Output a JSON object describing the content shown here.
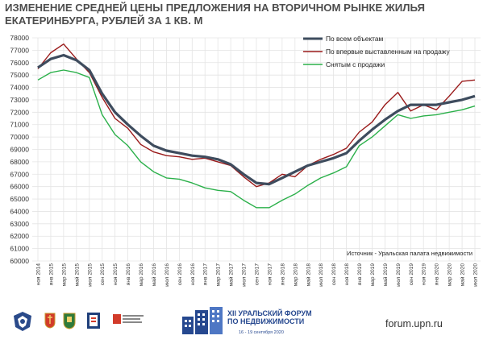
{
  "title_lines": [
    "Изменение средней цены предложения на вторичном рынке жилья",
    "Екатеринбурга, рублей за 1 кв. м"
  ],
  "source": "Источник - Уральская палата недвижимости",
  "footer": {
    "forum_line1": "XII УРАЛЬСКИЙ ФОРУМ",
    "forum_line2": "ПО НЕДВИЖИМОСТИ",
    "forum_dates": "16 - 19 сентября 2020",
    "website": "forum.upn.ru"
  },
  "colors": {
    "all": "#3e4c5e",
    "new": "#9a1a1a",
    "removed": "#2bb04a"
  },
  "chart_data": {
    "type": "line",
    "title": "Изменение средней цены предложения на вторичном рынке жилья Екатеринбурга, рублей за 1 кв. м",
    "ylim": [
      60000,
      78000
    ],
    "yticks": [
      60000,
      61000,
      62000,
      63000,
      64000,
      65000,
      66000,
      67000,
      68000,
      69000,
      70000,
      71000,
      72000,
      73000,
      74000,
      75000,
      76000,
      77000,
      78000
    ],
    "x_labels": [
      "ноя 2014",
      "янв 2015",
      "мар 2015",
      "май 2015",
      "июл 2015",
      "сен 2015",
      "ноя 2015",
      "янв 2016",
      "мар 2016",
      "май 2016",
      "июл 2016",
      "сен 2016",
      "ноя 2016",
      "янв 2017",
      "мар 2017",
      "май 2017",
      "июл 2017",
      "сен 2017",
      "ноя 2017",
      "янв 2018",
      "мар 2018",
      "май 2018",
      "июл 2018",
      "сен 2018",
      "ноя 2018",
      "янв 2019",
      "мар 2019",
      "май 2019",
      "июл 2019",
      "сен 2019",
      "ноя 2019",
      "янв 2020",
      "мар 2020",
      "май 2020",
      "июл 2020"
    ],
    "grid": true,
    "legend_position": "top-right",
    "series": [
      {
        "name": "По всем объектам",
        "values": [
          75600,
          76300,
          76600,
          76200,
          75400,
          73500,
          72000,
          71000,
          70100,
          69300,
          68900,
          68700,
          68500,
          68400,
          68200,
          67800,
          67000,
          66300,
          66200,
          66700,
          67200,
          67700,
          68000,
          68300,
          68700,
          69700,
          70600,
          71400,
          72100,
          72600,
          72600,
          72600,
          72800,
          73000,
          73300
        ]
      },
      {
        "name": "По впервые выставленным на продажу",
        "values": [
          75500,
          76800,
          77500,
          76300,
          75200,
          73200,
          71500,
          70700,
          69400,
          68800,
          68500,
          68400,
          68200,
          68300,
          68000,
          67700,
          66800,
          66000,
          66300,
          67000,
          66800,
          67700,
          68200,
          68600,
          69100,
          70400,
          71200,
          72600,
          73600,
          72100,
          72600,
          72200,
          73300,
          74500,
          74600
        ]
      },
      {
        "name": "Снятым с продажи",
        "values": [
          74600,
          75200,
          75400,
          75200,
          74800,
          71800,
          70200,
          69300,
          68000,
          67200,
          66700,
          66600,
          66300,
          65900,
          65700,
          65600,
          64900,
          64300,
          64300,
          64900,
          65400,
          66100,
          66700,
          67100,
          67600,
          69300,
          70000,
          70900,
          71800,
          71500,
          71700,
          71800,
          72000,
          72200,
          72500
        ]
      }
    ]
  }
}
